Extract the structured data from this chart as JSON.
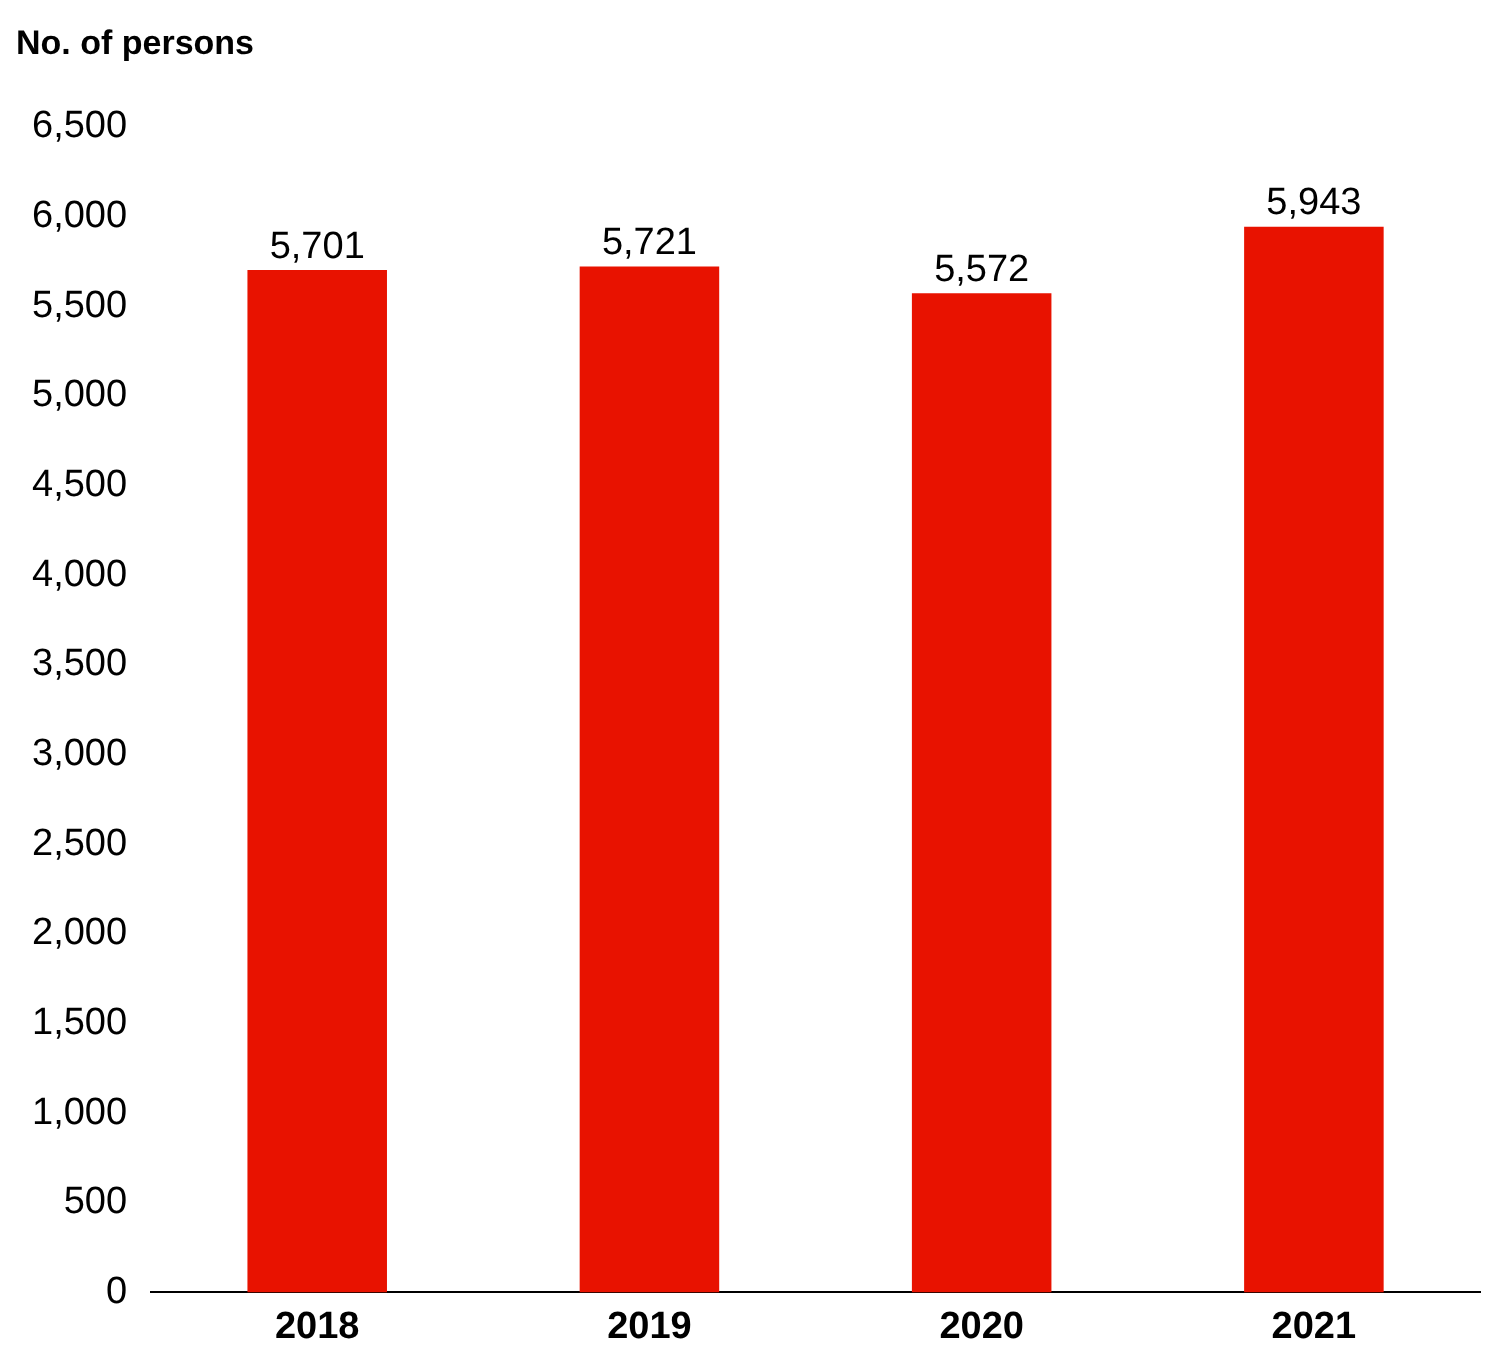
{
  "chart_data": {
    "type": "bar",
    "ylabel": "No. of persons",
    "categories": [
      "2018",
      "2019",
      "2020",
      "2021"
    ],
    "values": [
      5701,
      5721,
      5572,
      5943
    ],
    "value_labels": [
      "5,701",
      "5,721",
      "5,572",
      "5,943"
    ],
    "color": "#e81200",
    "ylim": [
      0,
      6500
    ],
    "yticks": [
      0,
      500,
      {
        "value": 1000,
        "label": "1,000"
      },
      {
        "value": 1500,
        "label": "1,500"
      },
      {
        "value": 2000,
        "label": "2,000"
      },
      {
        "value": 2500,
        "label": "2,500"
      },
      {
        "value": 3000,
        "label": "3,000"
      },
      {
        "value": 3500,
        "label": "3,500"
      },
      {
        "value": 4000,
        "label": "4,000"
      },
      {
        "value": 4500,
        "label": "4,500"
      },
      {
        "value": 5000,
        "label": "5,000"
      },
      {
        "value": 5500,
        "label": "5,500"
      },
      {
        "value": 6000,
        "label": "6,000"
      },
      {
        "value": 6500,
        "label": "6,500"
      }
    ],
    "grid": false,
    "legend": false
  }
}
